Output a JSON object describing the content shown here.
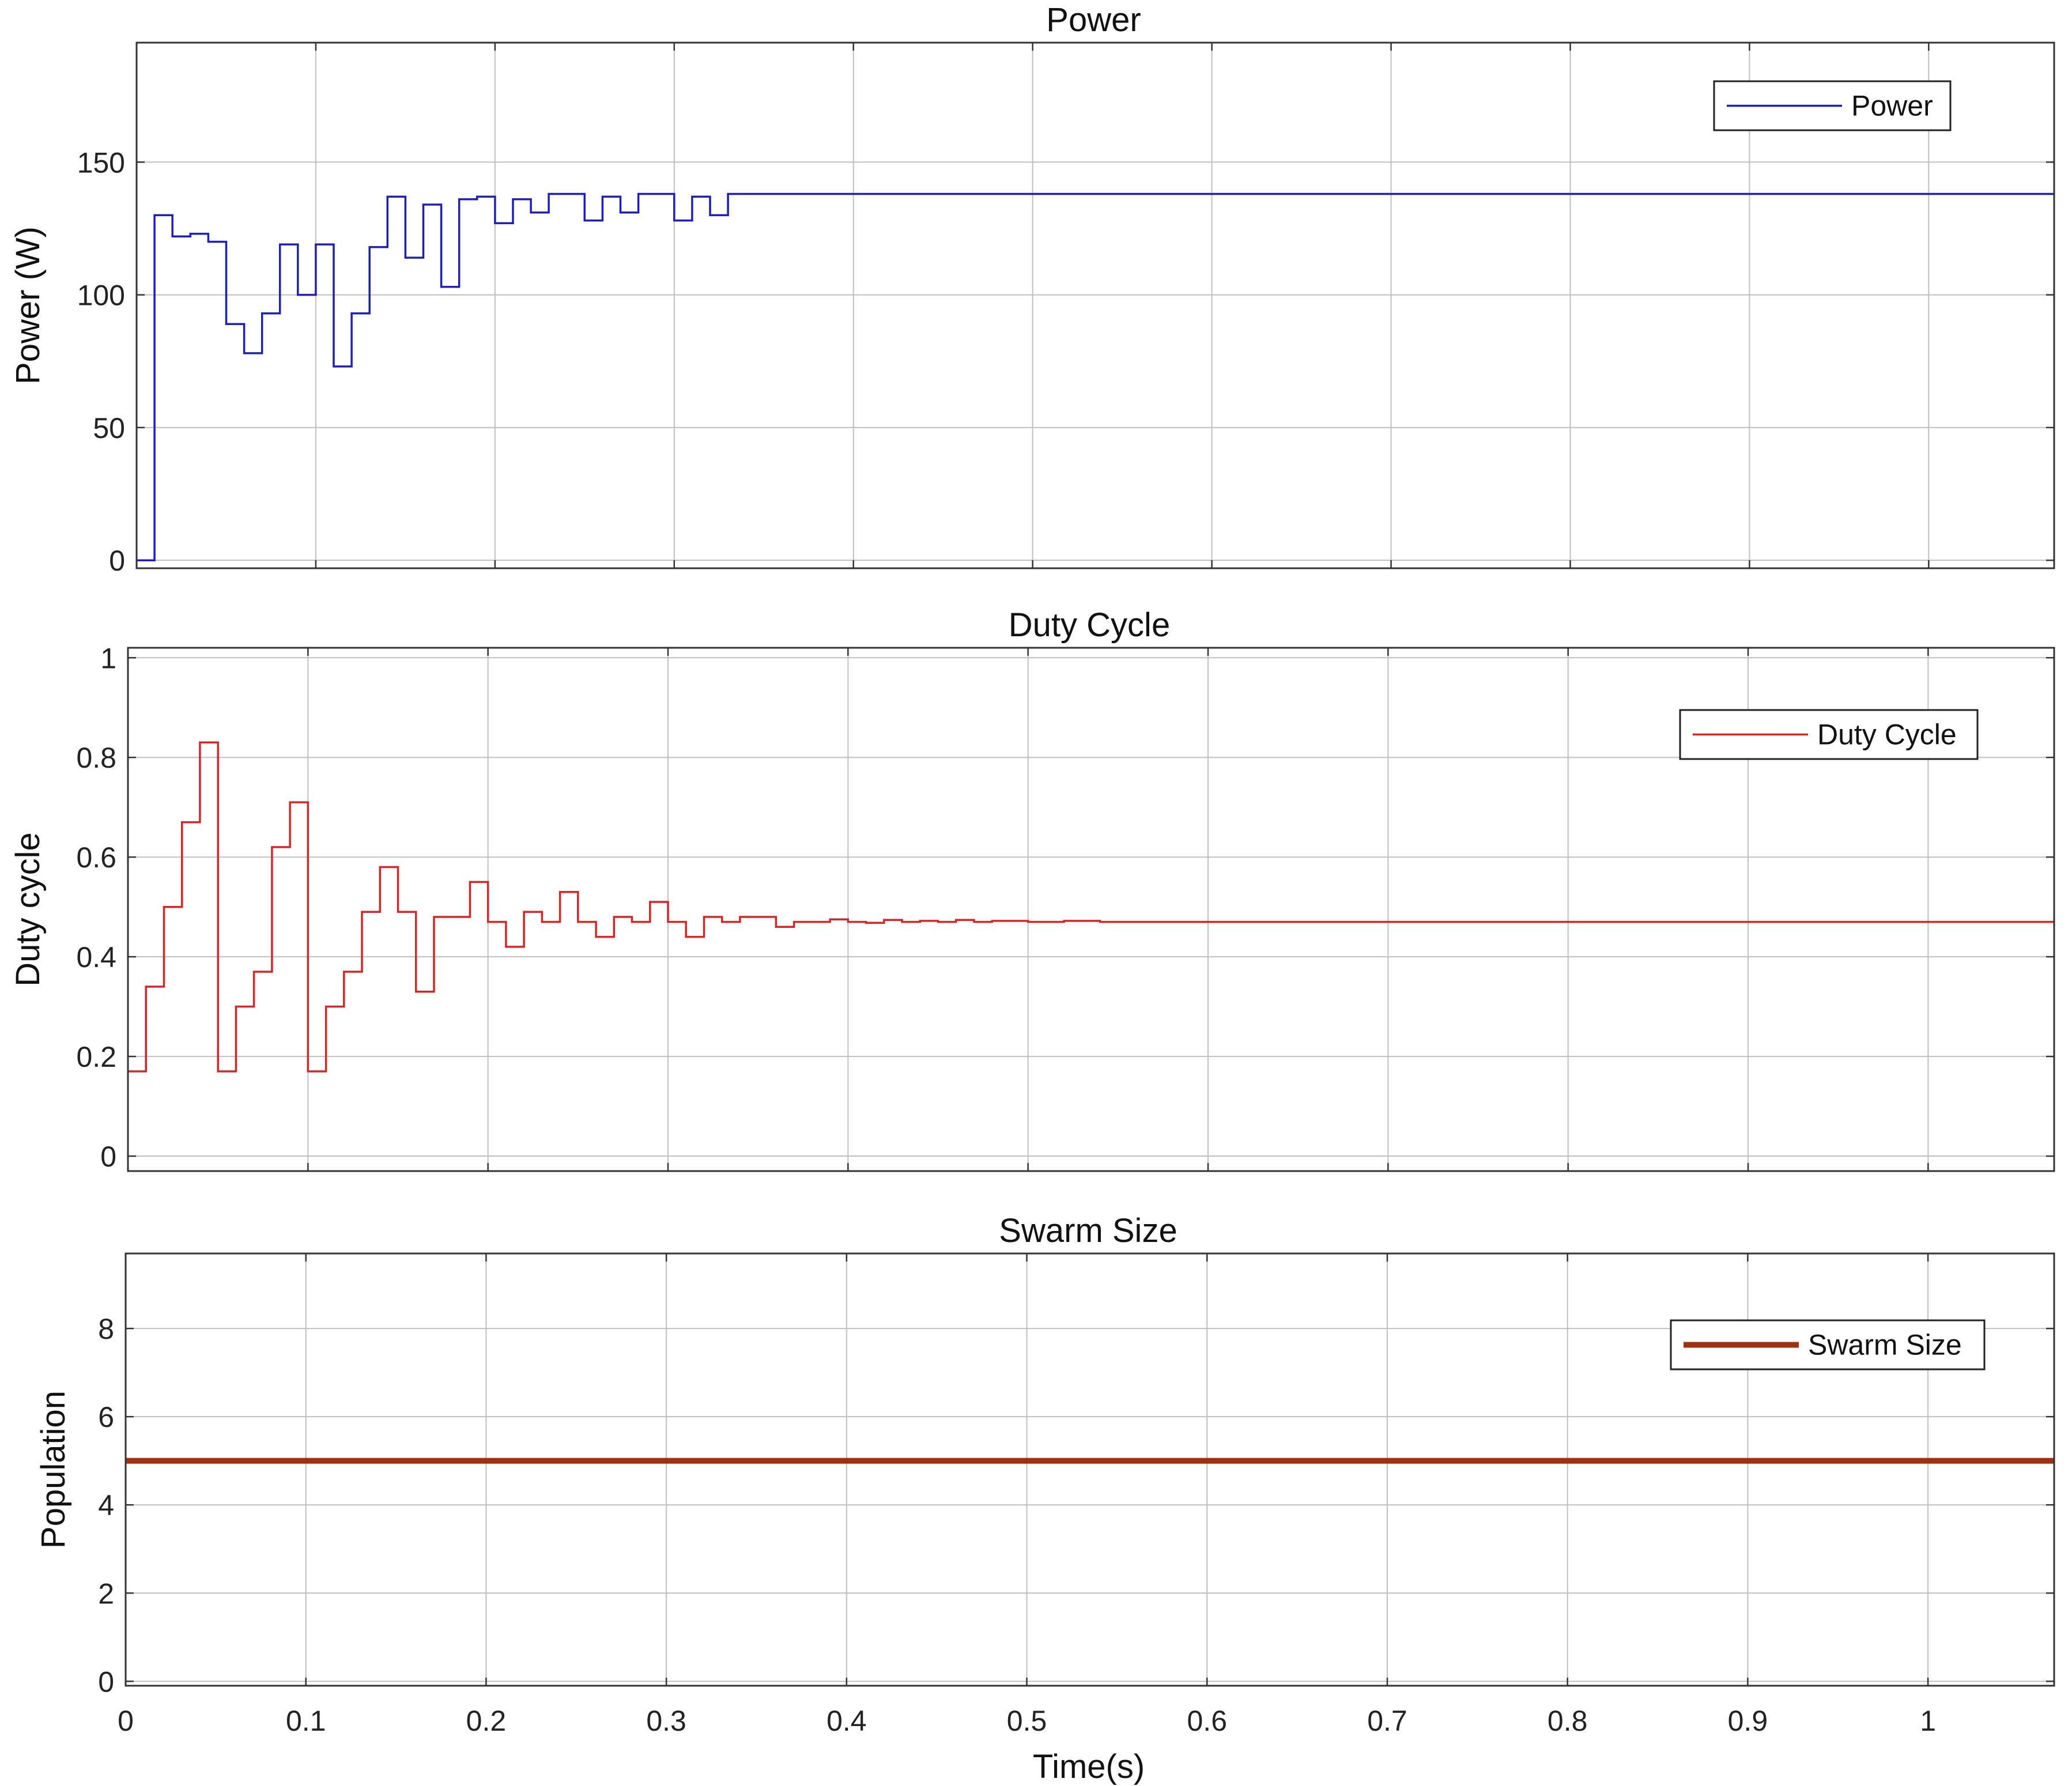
{
  "chart_data": [
    {
      "type": "line",
      "title": "Power",
      "xlabel": "",
      "ylabel": "Power (W)",
      "xlim": [
        0,
        1.07
      ],
      "ylim": [
        -3,
        195
      ],
      "xticks": [
        0,
        0.1,
        0.2,
        0.3,
        0.4,
        0.5,
        0.6,
        0.7,
        0.8,
        0.9,
        1
      ],
      "xtick_labels": [],
      "yticks": [
        0,
        50,
        100,
        150
      ],
      "ytick_labels": [
        "0",
        "50",
        "100",
        "150"
      ],
      "grid": true,
      "legend_position": "top-right",
      "series": [
        {
          "name": "Power",
          "color": "#1f1fb8",
          "line_style": "step",
          "x": [
            0,
            0.01,
            0.02,
            0.03,
            0.04,
            0.05,
            0.06,
            0.07,
            0.08,
            0.09,
            0.1,
            0.11,
            0.12,
            0.13,
            0.14,
            0.15,
            0.16,
            0.17,
            0.18,
            0.19,
            0.2,
            0.21,
            0.22,
            0.23,
            0.24,
            0.25,
            0.26,
            0.27,
            0.28,
            0.29,
            0.3,
            0.31,
            0.32,
            0.33,
            1.07
          ],
          "y": [
            0,
            130,
            122,
            123,
            120,
            89,
            78,
            93,
            119,
            100,
            119,
            73,
            93,
            118,
            137,
            114,
            134,
            103,
            136,
            137,
            127,
            136,
            131,
            138,
            138,
            128,
            137,
            131,
            138,
            138,
            128,
            137,
            130,
            138,
            138
          ]
        }
      ]
    },
    {
      "type": "line",
      "title": "Duty Cycle",
      "xlabel": "",
      "ylabel": "Duty cycle",
      "xlim": [
        0,
        1.07
      ],
      "ylim": [
        -0.03,
        1.02
      ],
      "xticks": [
        0,
        0.1,
        0.2,
        0.3,
        0.4,
        0.5,
        0.6,
        0.7,
        0.8,
        0.9,
        1
      ],
      "xtick_labels": [],
      "yticks": [
        0,
        0.2,
        0.4,
        0.6,
        0.8,
        1
      ],
      "ytick_labels": [
        "0",
        "0.2",
        "0.4",
        "0.6",
        "0.8",
        "1"
      ],
      "grid": true,
      "legend_position": "top-right",
      "series": [
        {
          "name": "Duty Cycle",
          "color": "#d62728",
          "line_style": "step",
          "x": [
            0,
            0.01,
            0.02,
            0.03,
            0.04,
            0.05,
            0.06,
            0.07,
            0.08,
            0.09,
            0.1,
            0.11,
            0.12,
            0.13,
            0.14,
            0.15,
            0.16,
            0.17,
            0.18,
            0.19,
            0.2,
            0.21,
            0.22,
            0.23,
            0.24,
            0.25,
            0.26,
            0.27,
            0.28,
            0.29,
            0.3,
            0.31,
            0.32,
            0.33,
            0.34,
            0.35,
            0.36,
            0.37,
            0.38,
            0.39,
            0.4,
            0.41,
            0.42,
            0.43,
            0.44,
            0.45,
            0.46,
            0.47,
            0.48,
            0.5,
            0.52,
            0.54,
            1.07
          ],
          "y": [
            0.17,
            0.34,
            0.5,
            0.67,
            0.83,
            0.17,
            0.3,
            0.37,
            0.62,
            0.71,
            0.17,
            0.3,
            0.37,
            0.49,
            0.58,
            0.49,
            0.33,
            0.48,
            0.48,
            0.55,
            0.47,
            0.42,
            0.49,
            0.47,
            0.53,
            0.47,
            0.44,
            0.48,
            0.47,
            0.51,
            0.47,
            0.44,
            0.48,
            0.47,
            0.48,
            0.48,
            0.46,
            0.47,
            0.47,
            0.475,
            0.47,
            0.468,
            0.474,
            0.47,
            0.472,
            0.47,
            0.474,
            0.47,
            0.472,
            0.47,
            0.472,
            0.47,
            0.47
          ]
        }
      ]
    },
    {
      "type": "line",
      "title": "Swarm Size",
      "xlabel": "Time(s)",
      "ylabel": "Population",
      "xlim": [
        0,
        1.07
      ],
      "ylim": [
        -0.1,
        9.7
      ],
      "xticks": [
        0,
        0.1,
        0.2,
        0.3,
        0.4,
        0.5,
        0.6,
        0.7,
        0.8,
        0.9,
        1
      ],
      "xtick_labels": [
        "0",
        "0.1",
        "0.2",
        "0.3",
        "0.4",
        "0.5",
        "0.6",
        "0.7",
        "0.8",
        "0.9",
        "1"
      ],
      "yticks": [
        0,
        2,
        4,
        6,
        8
      ],
      "ytick_labels": [
        "0",
        "2",
        "4",
        "6",
        "8"
      ],
      "grid": true,
      "legend_position": "top-right",
      "series": [
        {
          "name": "Swarm Size",
          "color": "#a0300f",
          "line_style": "step",
          "x": [
            0,
            1.07
          ],
          "y": [
            5,
            5
          ]
        }
      ]
    }
  ]
}
